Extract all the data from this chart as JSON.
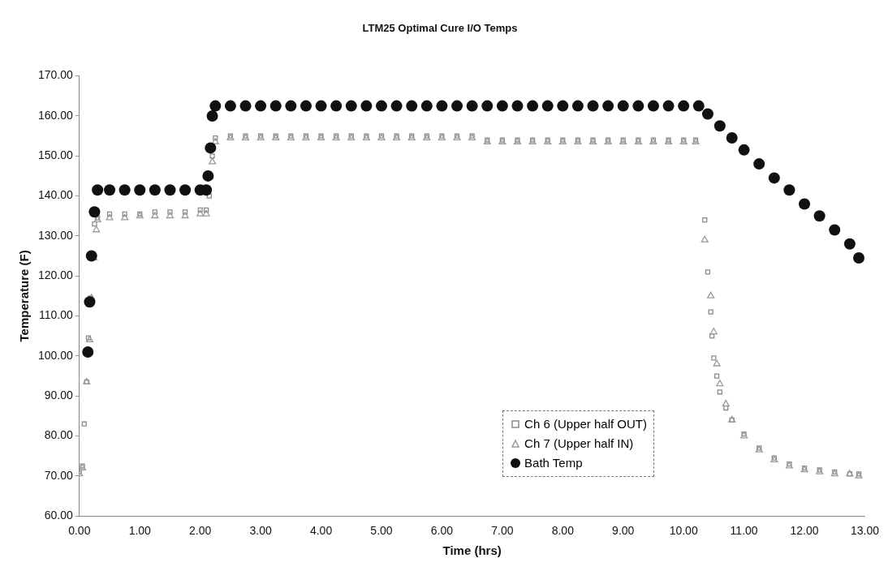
{
  "chart_data": {
    "type": "scatter",
    "title": "LTM25 Optimal Cure I/O Temps",
    "xlabel": "Time (hrs)",
    "ylabel": "Temperature (F)",
    "xlim": [
      0,
      13
    ],
    "ylim": [
      60,
      170
    ],
    "xticks": [
      {
        "value": 0,
        "label": "0.00"
      },
      {
        "value": 1,
        "label": "1.00"
      },
      {
        "value": 2,
        "label": "2.00"
      },
      {
        "value": 3,
        "label": "3.00"
      },
      {
        "value": 4,
        "label": "4.00"
      },
      {
        "value": 5,
        "label": "5.00"
      },
      {
        "value": 6,
        "label": "6.00"
      },
      {
        "value": 7,
        "label": "7.00"
      },
      {
        "value": 8,
        "label": "8.00"
      },
      {
        "value": 9,
        "label": "9.00"
      },
      {
        "value": 10,
        "label": "10.00"
      },
      {
        "value": 11,
        "label": "11.00"
      },
      {
        "value": 12,
        "label": "12.00"
      },
      {
        "value": 13,
        "label": "13.00"
      }
    ],
    "yticks": [
      {
        "value": 60,
        "label": "60.00"
      },
      {
        "value": 70,
        "label": "70.00"
      },
      {
        "value": 80,
        "label": "80.00"
      },
      {
        "value": 90,
        "label": "90.00"
      },
      {
        "value": 100,
        "label": "100.00"
      },
      {
        "value": 110,
        "label": "110.00"
      },
      {
        "value": 120,
        "label": "120.00"
      },
      {
        "value": 130,
        "label": "130.00"
      },
      {
        "value": 140,
        "label": "140.00"
      },
      {
        "value": 150,
        "label": "150.00"
      },
      {
        "value": 160,
        "label": "160.00"
      },
      {
        "value": 170,
        "label": "170.00"
      }
    ],
    "legend": "bottom right",
    "grid": false,
    "series": [
      {
        "name": "Ch 6 (Upper half OUT)",
        "color": "#8a8a8a",
        "marker": "square",
        "x": [
          0,
          0.05,
          0.08,
          0.12,
          0.15,
          0.18,
          0.25,
          0.3,
          0.5,
          0.75,
          1,
          1.25,
          1.5,
          1.75,
          2,
          2.1,
          2.15,
          2.2,
          2.25,
          2.5,
          2.75,
          3,
          3.25,
          3.5,
          3.75,
          4,
          4.25,
          4.5,
          4.75,
          5,
          5.25,
          5.5,
          5.75,
          6,
          6.25,
          6.5,
          6.75,
          7,
          7.25,
          7.5,
          7.75,
          8,
          8.25,
          8.5,
          8.75,
          9,
          9.25,
          9.5,
          9.75,
          10,
          10.2,
          10.35,
          10.4,
          10.45,
          10.47,
          10.5,
          10.55,
          10.6,
          10.7,
          10.8,
          11,
          11.25,
          11.5,
          11.75,
          12,
          12.25,
          12.5,
          12.75,
          12.9
        ],
        "values": [
          71,
          72.5,
          83,
          93.5,
          104.5,
          114.5,
          133,
          134.5,
          135.5,
          135.5,
          135.5,
          136,
          136,
          136,
          136.5,
          136.5,
          140,
          150,
          154.5,
          155,
          155,
          155,
          155,
          155,
          155,
          155,
          155,
          155,
          155,
          155,
          155,
          155,
          155,
          155,
          155,
          155,
          154,
          154,
          154,
          154,
          154,
          154,
          154,
          154,
          154,
          154,
          154,
          154,
          154,
          154,
          154,
          134,
          121,
          111,
          105,
          99.5,
          95,
          91,
          87,
          84,
          80.5,
          77,
          74.5,
          73,
          72,
          71.5,
          71,
          70.5,
          70.5
        ]
      },
      {
        "name": "Ch 7 (Upper half IN)",
        "color": "#9a9a9a",
        "marker": "triangle",
        "x": [
          0,
          0.05,
          0.12,
          0.17,
          0.2,
          0.24,
          0.28,
          0.3,
          0.5,
          0.75,
          1,
          1.25,
          1.5,
          1.75,
          2,
          2.1,
          2.2,
          2.25,
          2.5,
          2.75,
          3,
          3.25,
          3.5,
          3.75,
          4,
          4.25,
          4.5,
          4.75,
          5,
          5.25,
          5.5,
          5.75,
          6,
          6.25,
          6.5,
          6.75,
          7,
          7.25,
          7.5,
          7.75,
          8,
          8.25,
          8.5,
          8.75,
          9,
          9.25,
          9.5,
          9.75,
          10,
          10.2,
          10.35,
          10.45,
          10.5,
          10.55,
          10.6,
          10.7,
          10.8,
          11,
          11.25,
          11.5,
          11.75,
          12,
          12.25,
          12.5,
          12.75,
          12.9
        ],
        "values": [
          70.5,
          72,
          93.5,
          104,
          114.5,
          124.5,
          131.5,
          134,
          134.5,
          134.5,
          135,
          135,
          135,
          135,
          135.5,
          135.5,
          148.5,
          153.5,
          154.5,
          154.5,
          154.5,
          154.5,
          154.5,
          154.5,
          154.5,
          154.5,
          154.5,
          154.5,
          154.5,
          154.5,
          154.5,
          154.5,
          154.5,
          154.5,
          154.5,
          153.5,
          153.5,
          153.5,
          153.5,
          153.5,
          153.5,
          153.5,
          153.5,
          153.5,
          153.5,
          153.5,
          153.5,
          153.5,
          153.5,
          153.5,
          129,
          115,
          106,
          98,
          93,
          88,
          84,
          80,
          76.5,
          74,
          72.5,
          71.5,
          71,
          70.5,
          70.5,
          70
        ]
      },
      {
        "name": "Bath Temp",
        "color": "#111111",
        "marker": "circle",
        "x": [
          0.14,
          0.17,
          0.2,
          0.25,
          0.3,
          0.5,
          0.75,
          1,
          1.25,
          1.5,
          1.75,
          2,
          2.1,
          2.13,
          2.17,
          2.2,
          2.25,
          2.5,
          2.75,
          3,
          3.25,
          3.5,
          3.75,
          4,
          4.25,
          4.5,
          4.75,
          5,
          5.25,
          5.5,
          5.75,
          6,
          6.25,
          6.5,
          6.75,
          7,
          7.25,
          7.5,
          7.75,
          8,
          8.25,
          8.5,
          8.75,
          9,
          9.25,
          9.5,
          9.75,
          10,
          10.25,
          10.4,
          10.6,
          10.8,
          11,
          11.25,
          11.5,
          11.75,
          12,
          12.25,
          12.5,
          12.75,
          12.9
        ],
        "values": [
          101,
          113.5,
          125,
          136,
          141.5,
          141.5,
          141.5,
          141.5,
          141.5,
          141.5,
          141.5,
          141.5,
          141.5,
          145,
          152,
          160,
          162.5,
          162.5,
          162.5,
          162.5,
          162.5,
          162.5,
          162.5,
          162.5,
          162.5,
          162.5,
          162.5,
          162.5,
          162.5,
          162.5,
          162.5,
          162.5,
          162.5,
          162.5,
          162.5,
          162.5,
          162.5,
          162.5,
          162.5,
          162.5,
          162.5,
          162.5,
          162.5,
          162.5,
          162.5,
          162.5,
          162.5,
          162.5,
          162.5,
          160.5,
          157.5,
          154.5,
          151.5,
          148,
          144.5,
          141.5,
          138,
          135,
          131.5,
          128,
          124.5
        ]
      }
    ]
  }
}
